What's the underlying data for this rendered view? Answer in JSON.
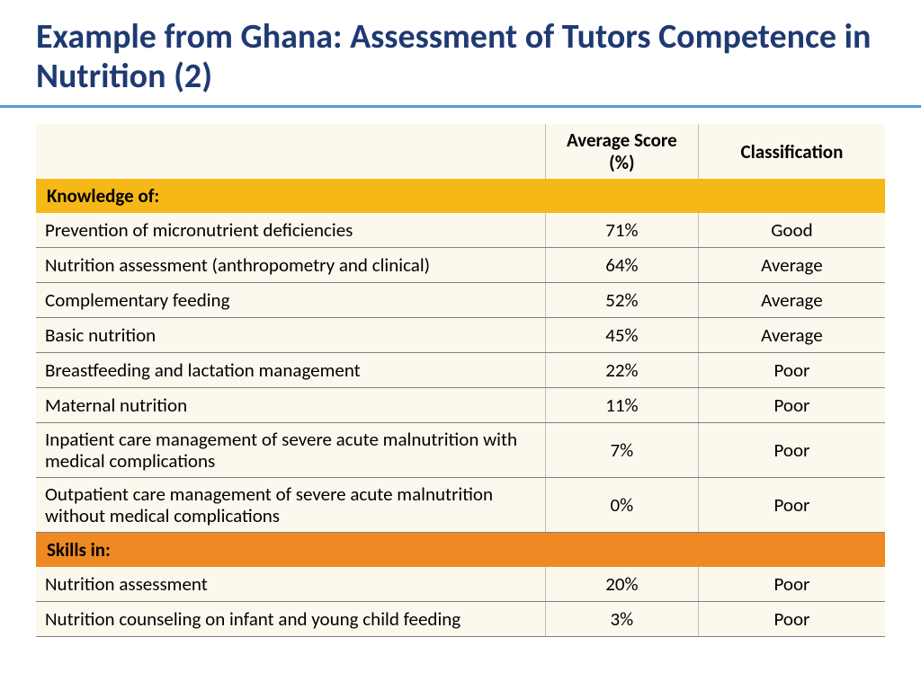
{
  "title": "Example from Ghana: Assessment of Tutors Competence in Nutrition (2)",
  "colors": {
    "title_color": "#1f3a73",
    "divider_color": "#5b9bd5",
    "table_bg": "#fdf8ed",
    "section_yellow": "#f5b817",
    "section_orange": "#ee8923",
    "row_border": "#808080",
    "cell_border": "#c0c0c0"
  },
  "table": {
    "columns": [
      "",
      "Average Score (%)",
      "Classification"
    ],
    "sections": [
      {
        "label": "Knowledge of:",
        "style": "yellow",
        "rows": [
          {
            "label": "Prevention of micronutrient deficiencies",
            "score": "71%",
            "class": "Good"
          },
          {
            "label": "Nutrition assessment (anthropometry and clinical)",
            "score": "64%",
            "class": "Average"
          },
          {
            "label": "Complementary feeding",
            "score": "52%",
            "class": "Average"
          },
          {
            "label": "Basic nutrition",
            "score": "45%",
            "class": "Average"
          },
          {
            "label": "Breastfeeding and lactation management",
            "score": "22%",
            "class": "Poor"
          },
          {
            "label": "Maternal nutrition",
            "score": "11%",
            "class": "Poor"
          },
          {
            "label": "Inpatient care management of severe acute malnutrition with medical complications",
            "score": "7%",
            "class": "Poor"
          },
          {
            "label": "Outpatient care management of severe acute malnutrition without medical complications",
            "score": "0%",
            "class": "Poor"
          }
        ]
      },
      {
        "label": "Skills in:",
        "style": "orange",
        "rows": [
          {
            "label": "Nutrition assessment",
            "score": "20%",
            "class": "Poor"
          },
          {
            "label": "Nutrition counseling on infant and young child feeding",
            "score": "3%",
            "class": "Poor"
          }
        ]
      }
    ]
  }
}
